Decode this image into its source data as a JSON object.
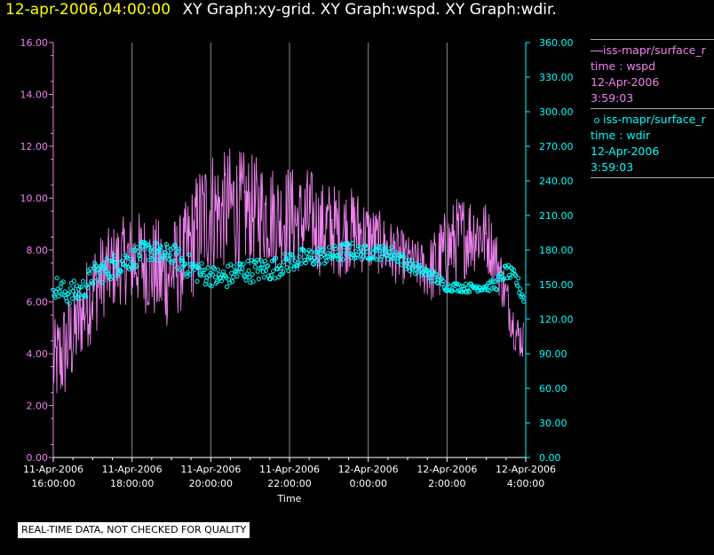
{
  "header": {
    "datetime": "12-apr-2006,04:00:00",
    "titles": "XY Graph:xy-grid.  XY Graph:wspd.  XY Graph:wdir."
  },
  "legend": {
    "items": [
      {
        "name": "iss-mapr/surface_r",
        "field": "time : wspd",
        "date": "12-Apr-2006",
        "time": "3:59:03",
        "color": "#ee82ee",
        "marker": "line"
      },
      {
        "name": "iss-mapr/surface_r",
        "field": "time : wdir",
        "date": "12-Apr-2006",
        "time": "3:59:03",
        "color": "#00ffff",
        "marker": "circle"
      }
    ]
  },
  "notice": "REAL-TIME DATA, NOT CHECKED FOR QUALITY",
  "chart_data": {
    "type": "line",
    "xlabel": "Time",
    "x_ticks": [
      {
        "line1": "11-Apr-2006",
        "line2": "16:00:00",
        "hour": 0
      },
      {
        "line1": "11-Apr-2006",
        "line2": "18:00:00",
        "hour": 2
      },
      {
        "line1": "11-Apr-2006",
        "line2": "20:00:00",
        "hour": 4
      },
      {
        "line1": "11-Apr-2006",
        "line2": "22:00:00",
        "hour": 6
      },
      {
        "line1": "12-Apr-2006",
        "line2": "0:00:00",
        "hour": 8
      },
      {
        "line1": "12-Apr-2006",
        "line2": "2:00:00",
        "hour": 10
      },
      {
        "line1": "12-Apr-2006",
        "line2": "4:00:00",
        "hour": 12
      }
    ],
    "x_range_hours": [
      0,
      12
    ],
    "y_left": {
      "ticks": [
        "0.00",
        "2.00",
        "4.00",
        "6.00",
        "8.00",
        "10.00",
        "12.00",
        "14.00",
        "16.00"
      ],
      "range": [
        0,
        16
      ],
      "color": "#ee82ee"
    },
    "y_right": {
      "ticks": [
        "0.00",
        "30.00",
        "60.00",
        "90.00",
        "120.00",
        "150.00",
        "180.00",
        "210.00",
        "240.00",
        "270.00",
        "300.00",
        "330.00",
        "360.00"
      ],
      "range": [
        0,
        360
      ],
      "color": "#00ffff"
    },
    "grid": "vertical",
    "series": [
      {
        "field": "wspd",
        "axis": "left",
        "style": "line",
        "color": "#ee82ee",
        "hours": [
          0,
          0.25,
          0.5,
          0.75,
          1.0,
          1.25,
          1.5,
          1.75,
          2.0,
          2.25,
          2.5,
          2.75,
          3.0,
          3.25,
          3.5,
          3.75,
          4.0,
          4.25,
          4.5,
          4.75,
          5.0,
          5.25,
          5.5,
          5.75,
          6.0,
          6.25,
          6.5,
          6.75,
          7.0,
          7.25,
          7.5,
          7.75,
          8.0,
          8.25,
          8.5,
          8.75,
          9.0,
          9.25,
          9.5,
          9.75,
          10.0,
          10.25,
          10.5,
          10.75,
          11.0,
          11.25,
          11.5,
          11.75,
          11.95
        ],
        "values": [
          3.5,
          4.0,
          4.7,
          5.6,
          6.4,
          7.0,
          7.3,
          7.6,
          7.6,
          7.6,
          7.3,
          7.0,
          7.2,
          7.5,
          8.2,
          9.0,
          9.6,
          9.4,
          9.7,
          9.5,
          9.5,
          9.5,
          9.4,
          9.2,
          9.3,
          9.0,
          9.2,
          8.8,
          8.9,
          8.7,
          8.8,
          8.7,
          8.5,
          8.3,
          8.0,
          7.8,
          7.6,
          7.4,
          7.2,
          7.4,
          8.0,
          8.4,
          8.6,
          8.7,
          8.5,
          7.7,
          6.2,
          4.8,
          4.5
        ],
        "noise": [
          1.2,
          1.5,
          1.4,
          1.2,
          1.4,
          1.2,
          1.2,
          1.2,
          1.3,
          1.4,
          1.4,
          1.6,
          1.5,
          1.4,
          1.6,
          1.8,
          1.8,
          1.6,
          1.7,
          1.7,
          1.6,
          1.5,
          1.5,
          1.4,
          1.5,
          1.4,
          1.5,
          1.3,
          1.3,
          1.3,
          1.2,
          1.2,
          1.0,
          0.9,
          0.9,
          0.8,
          0.7,
          0.7,
          0.8,
          1.2,
          1.2,
          1.2,
          1.2,
          1.1,
          1.0,
          0.8,
          0.7,
          0.6,
          0.6
        ]
      },
      {
        "field": "wdir",
        "axis": "right",
        "style": "circle",
        "color": "#00ffff",
        "hours": [
          0,
          0.25,
          0.5,
          0.75,
          1.0,
          1.25,
          1.5,
          1.75,
          2.0,
          2.25,
          2.5,
          2.75,
          3.0,
          3.25,
          3.5,
          3.75,
          4.0,
          4.25,
          4.5,
          4.75,
          5.0,
          5.25,
          5.5,
          5.75,
          6.0,
          6.25,
          6.5,
          6.75,
          7.0,
          7.25,
          7.5,
          7.75,
          8.0,
          8.25,
          8.5,
          8.75,
          9.0,
          9.25,
          9.5,
          9.75,
          10.0,
          10.25,
          10.5,
          10.75,
          11.0,
          11.25,
          11.5,
          11.75,
          11.95
        ],
        "values": [
          150,
          143,
          143,
          145,
          158,
          162,
          165,
          170,
          172,
          178,
          180,
          175,
          178,
          170,
          165,
          160,
          158,
          155,
          158,
          162,
          162,
          163,
          163,
          166,
          170,
          172,
          173,
          175,
          175,
          177,
          180,
          178,
          178,
          178,
          178,
          175,
          168,
          163,
          160,
          155,
          148,
          148,
          147,
          148,
          148,
          150,
          162,
          155,
          138
        ],
        "noise": [
          8,
          8,
          8,
          8,
          8,
          8,
          8,
          8,
          7,
          7,
          7,
          7,
          7,
          8,
          8,
          8,
          7,
          8,
          8,
          8,
          8,
          8,
          8,
          7,
          7,
          7,
          7,
          6,
          6,
          6,
          6,
          5,
          5,
          5,
          5,
          5,
          4,
          4,
          4,
          4,
          3,
          3,
          3,
          3,
          3,
          4,
          5,
          5,
          5
        ]
      }
    ]
  }
}
